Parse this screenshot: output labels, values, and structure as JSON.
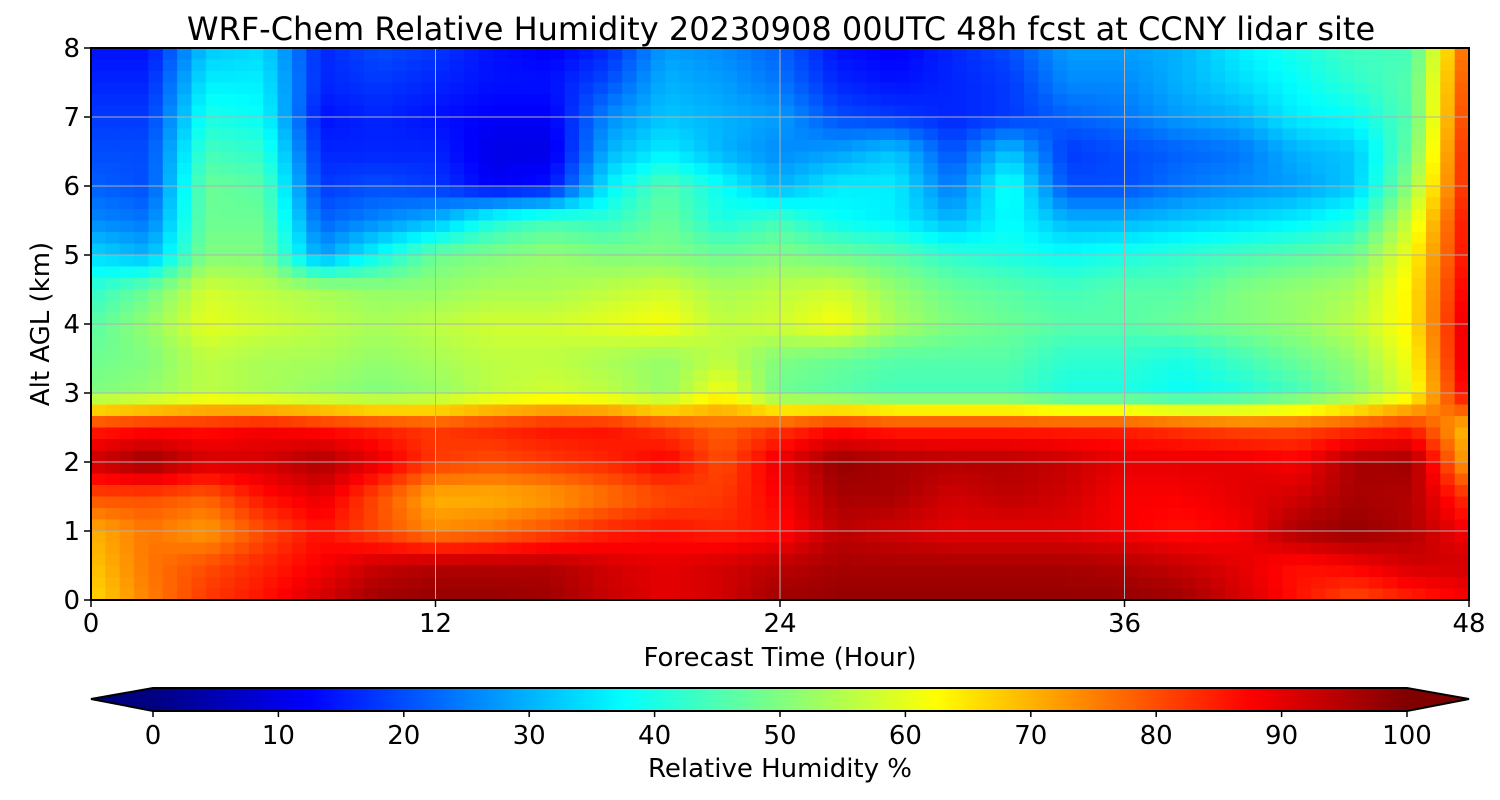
{
  "chart_data": {
    "type": "heatmap",
    "title": "WRF-Chem Relative Humidity 20230908 00UTC 48h fcst at CCNY lidar site",
    "xlabel": "Forecast Time (Hour)",
    "ylabel": "Alt AGL (km)",
    "xlim": [
      0,
      48
    ],
    "ylim": [
      0,
      8
    ],
    "xticks": [
      "0",
      "12",
      "24",
      "36",
      "48"
    ],
    "yticks": [
      "0",
      "1",
      "2",
      "3",
      "4",
      "5",
      "6",
      "7",
      "8"
    ],
    "grid": true,
    "colormap": "jet",
    "colorbar": {
      "label": "Relative Humidity %",
      "range": [
        0,
        100
      ],
      "ticks": [
        "0",
        "10",
        "20",
        "30",
        "40",
        "50",
        "60",
        "70",
        "80",
        "90",
        "100"
      ],
      "extend": "both",
      "orientation": "horizontal"
    },
    "x_hours": [
      0,
      2,
      4,
      6,
      8,
      10,
      12,
      14,
      16,
      18,
      20,
      22,
      24,
      26,
      28,
      30,
      32,
      34,
      36,
      38,
      40,
      42,
      44,
      46,
      48
    ],
    "z_km": [
      0,
      0.5,
      1,
      1.5,
      2,
      2.5,
      3,
      3.5,
      4,
      4.5,
      5,
      5.5,
      6,
      6.5,
      7,
      7.5,
      8
    ],
    "rh_percent": [
      [
        66,
        75,
        82,
        86,
        92,
        97,
        98,
        98,
        97,
        93,
        90,
        92,
        97,
        98,
        98,
        98,
        98,
        98,
        98,
        97,
        92,
        86,
        80,
        84,
        88
      ],
      [
        68,
        76,
        80,
        84,
        88,
        93,
        95,
        95,
        95,
        92,
        90,
        92,
        94,
        96,
        96,
        96,
        96,
        96,
        95,
        93,
        90,
        86,
        88,
        92,
        92
      ],
      [
        70,
        76,
        72,
        80,
        86,
        80,
        74,
        76,
        80,
        84,
        86,
        84,
        86,
        94,
        92,
        90,
        90,
        90,
        88,
        86,
        88,
        96,
        98,
        95,
        88
      ],
      [
        80,
        80,
        78,
        86,
        90,
        80,
        70,
        70,
        72,
        76,
        80,
        82,
        88,
        96,
        96,
        92,
        94,
        92,
        88,
        88,
        90,
        92,
        96,
        95,
        82
      ],
      [
        93,
        98,
        92,
        92,
        96,
        90,
        82,
        80,
        82,
        84,
        88,
        80,
        90,
        98,
        96,
        95,
        95,
        93,
        90,
        90,
        90,
        88,
        96,
        97,
        70
      ],
      [
        84,
        86,
        86,
        88,
        86,
        84,
        82,
        84,
        86,
        86,
        82,
        78,
        82,
        86,
        84,
        84,
        84,
        84,
        84,
        82,
        80,
        80,
        82,
        84,
        68
      ],
      [
        50,
        52,
        56,
        54,
        52,
        50,
        52,
        56,
        58,
        56,
        52,
        62,
        48,
        46,
        44,
        44,
        44,
        40,
        40,
        38,
        40,
        44,
        50,
        60,
        90
      ],
      [
        48,
        50,
        56,
        54,
        54,
        52,
        54,
        56,
        56,
        54,
        52,
        56,
        50,
        48,
        46,
        46,
        46,
        42,
        42,
        40,
        44,
        48,
        52,
        62,
        92
      ],
      [
        46,
        52,
        60,
        58,
        56,
        54,
        56,
        58,
        58,
        60,
        62,
        56,
        58,
        62,
        54,
        50,
        48,
        46,
        46,
        48,
        50,
        52,
        56,
        64,
        92
      ],
      [
        42,
        48,
        58,
        56,
        54,
        52,
        52,
        54,
        54,
        56,
        58,
        54,
        56,
        58,
        52,
        48,
        46,
        44,
        46,
        46,
        50,
        52,
        54,
        64,
        90
      ],
      [
        34,
        30,
        50,
        50,
        28,
        38,
        48,
        50,
        52,
        50,
        50,
        48,
        50,
        48,
        46,
        42,
        40,
        38,
        40,
        42,
        44,
        46,
        48,
        62,
        88
      ],
      [
        26,
        24,
        48,
        48,
        22,
        26,
        30,
        40,
        44,
        42,
        48,
        40,
        44,
        38,
        36,
        30,
        38,
        30,
        30,
        32,
        34,
        36,
        40,
        58,
        88
      ],
      [
        22,
        20,
        48,
        46,
        18,
        20,
        18,
        12,
        14,
        36,
        46,
        38,
        30,
        36,
        36,
        24,
        40,
        20,
        20,
        24,
        26,
        28,
        32,
        52,
        86
      ],
      [
        20,
        20,
        44,
        42,
        16,
        16,
        16,
        10,
        10,
        30,
        36,
        30,
        26,
        28,
        32,
        20,
        32,
        18,
        20,
        22,
        24,
        30,
        32,
        48,
        86
      ],
      [
        18,
        18,
        40,
        38,
        14,
        16,
        14,
        12,
        12,
        26,
        32,
        30,
        28,
        20,
        18,
        16,
        18,
        22,
        24,
        28,
        30,
        36,
        38,
        46,
        84
      ],
      [
        16,
        16,
        36,
        36,
        16,
        18,
        16,
        14,
        14,
        20,
        30,
        28,
        24,
        16,
        14,
        16,
        18,
        26,
        26,
        30,
        34,
        38,
        42,
        46,
        82
      ],
      [
        14,
        14,
        32,
        34,
        16,
        20,
        18,
        14,
        12,
        16,
        28,
        26,
        22,
        14,
        12,
        16,
        20,
        28,
        28,
        30,
        36,
        40,
        44,
        44,
        80
      ]
    ]
  }
}
